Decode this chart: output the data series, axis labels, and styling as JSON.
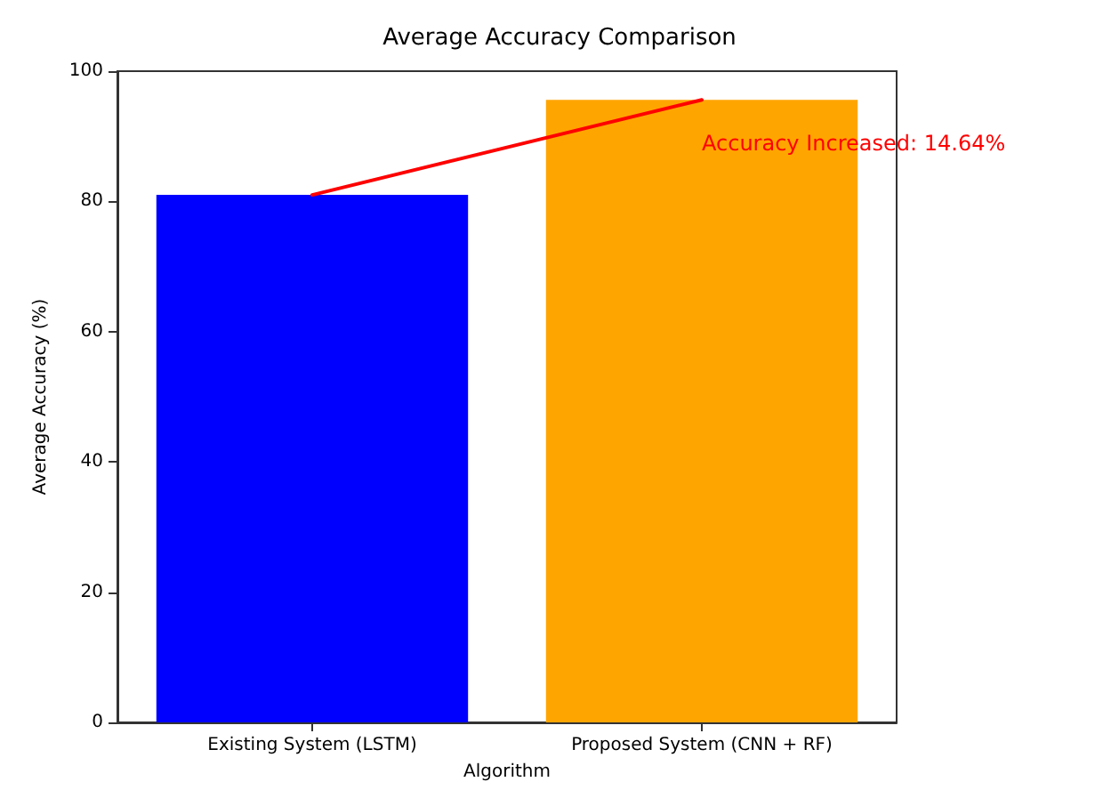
{
  "chart_data": {
    "type": "bar",
    "title": "Average Accuracy Comparison",
    "xlabel": "Algorithm",
    "ylabel": "Average Accuracy (%)",
    "categories": [
      "Existing System (LSTM)",
      "Proposed System (CNN + RF)"
    ],
    "series": [
      {
        "colors": [
          "#0000ff",
          "#ffa500"
        ],
        "values": [
          81.0,
          95.6
        ]
      },
      {
        "type": "line",
        "color": "#ff0000",
        "marker": "none",
        "x": [
          "Existing System (LSTM)",
          "Proposed System (CNN + RF)"
        ],
        "values": [
          81.0,
          95.6
        ]
      }
    ],
    "annotations": [
      "Accuracy Increased: 14.64%"
    ],
    "ylim": [
      0,
      100
    ],
    "yticks": [
      0,
      20,
      40,
      60,
      80,
      100
    ],
    "grid": false
  }
}
